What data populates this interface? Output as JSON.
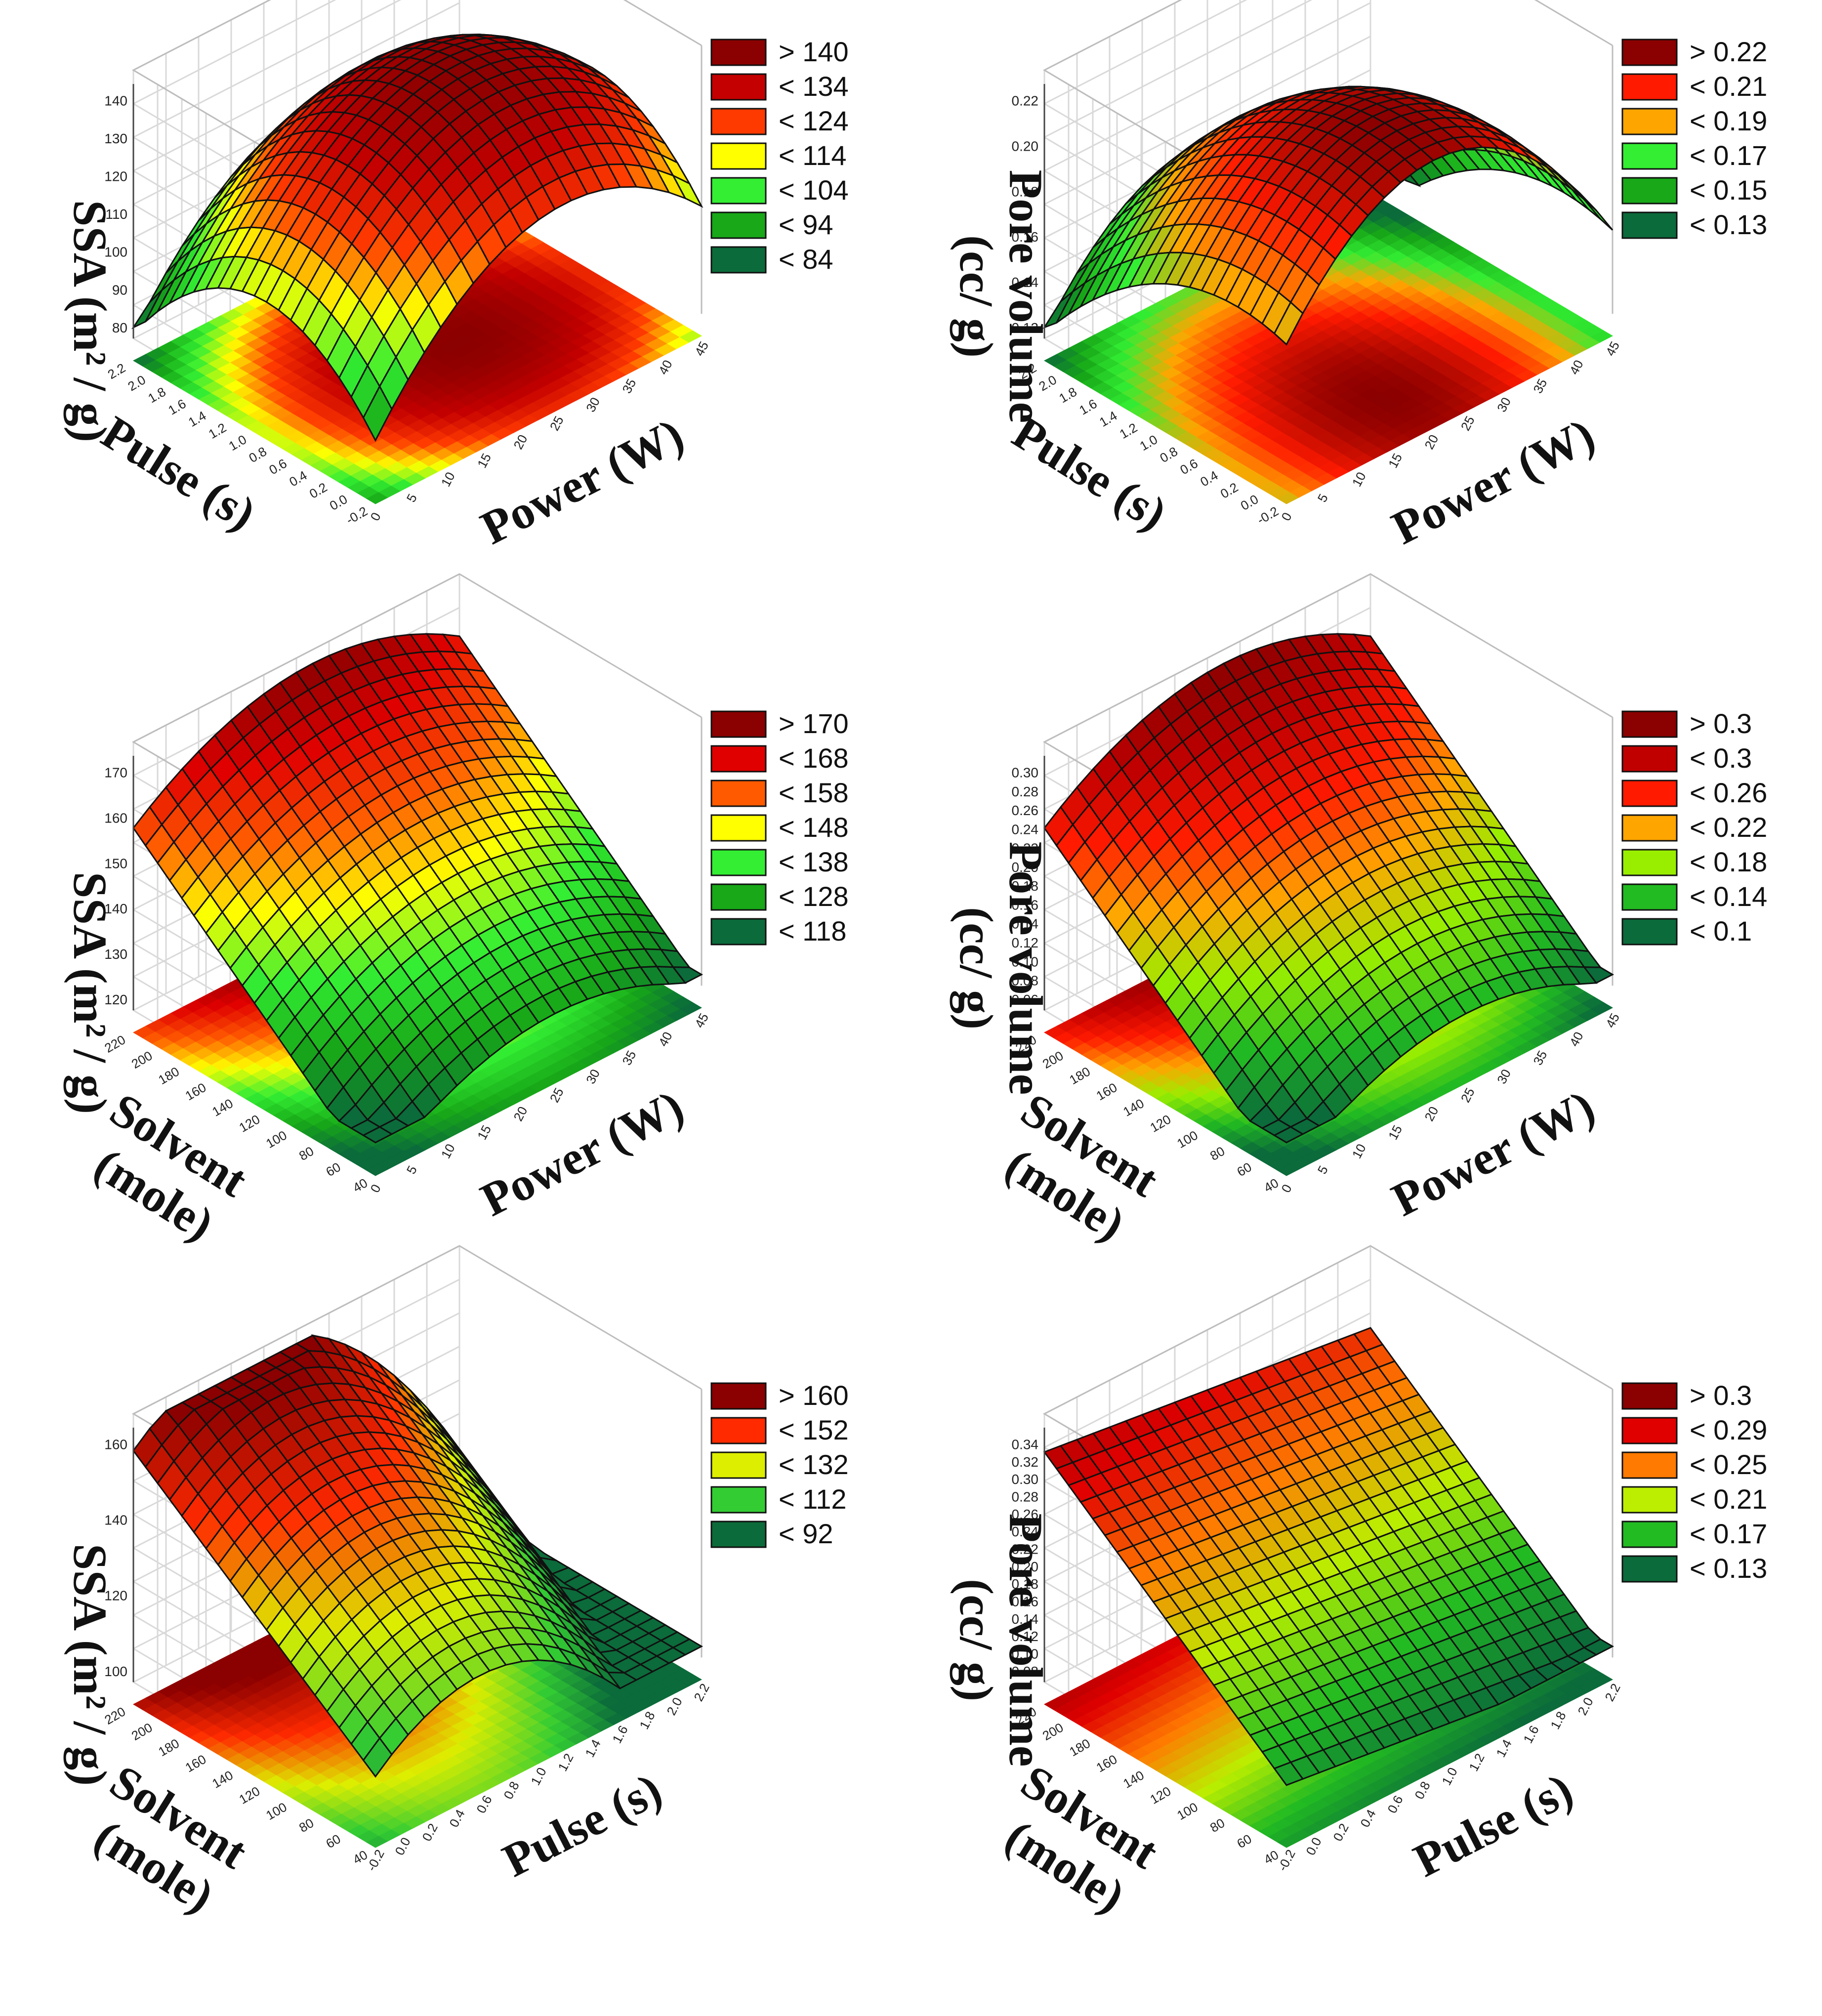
{
  "chart_data": [
    {
      "type": "surface3d",
      "title": "",
      "zlabel": "SSA (m² / g)",
      "xlabel": "Power (W)",
      "ylabel": "Pulse (s)",
      "x_ticks": [
        "0",
        "5",
        "10",
        "15",
        "20",
        "25",
        "30",
        "35",
        "40",
        "45"
      ],
      "y_ticks": [
        "-0.2",
        "0.0",
        "0.2",
        "0.4",
        "0.6",
        "0.8",
        "1.0",
        "1.2",
        "1.4",
        "1.6",
        "1.8",
        "2.0",
        "2.2"
      ],
      "z_ticks": [
        "80",
        "90",
        "100",
        "110",
        "120",
        "130",
        "140"
      ],
      "zlim": [
        78,
        144
      ],
      "surface_shape": "dome",
      "legend": [
        {
          "label": "> 140",
          "color": "#8b0000"
        },
        {
          "label": "< 134",
          "color": "#c40000"
        },
        {
          "label": "< 124",
          "color": "#ff3a00"
        },
        {
          "label": "< 114",
          "color": "#ffff00"
        },
        {
          "label": "< 104",
          "color": "#33ee33"
        },
        {
          "label": "< 94",
          "color": "#18a818"
        },
        {
          "label": "< 84",
          "color": "#0b6b3a"
        }
      ]
    },
    {
      "type": "surface3d",
      "title": "",
      "zlabel": "Pore volume",
      "zlabel2": "(cc/ g)",
      "xlabel": "Power (W)",
      "ylabel": "Pulse (s)",
      "x_ticks": [
        "0",
        "5",
        "10",
        "15",
        "20",
        "25",
        "30",
        "35",
        "40",
        "45"
      ],
      "y_ticks": [
        "-0.2",
        "0.0",
        "0.2",
        "0.4",
        "0.6",
        "0.8",
        "1.0",
        "1.2",
        "1.4",
        "1.6",
        "1.8",
        "2.0",
        "2.2"
      ],
      "z_ticks": [
        "0.12",
        "0.14",
        "0.16",
        "0.18",
        "0.20",
        "0.22"
      ],
      "zlim": [
        0.11,
        0.225
      ],
      "surface_shape": "ridge",
      "legend": [
        {
          "label": "> 0.22",
          "color": "#8b0000"
        },
        {
          "label": "< 0.21",
          "color": "#ff1a00"
        },
        {
          "label": "< 0.19",
          "color": "#ffa500"
        },
        {
          "label": "< 0.17",
          "color": "#33ee33"
        },
        {
          "label": "< 0.15",
          "color": "#18a818"
        },
        {
          "label": "< 0.13",
          "color": "#0b6b3a"
        }
      ]
    },
    {
      "type": "surface3d",
      "title": "",
      "zlabel": "SSA (m² / g)",
      "xlabel": "Power (W)",
      "ylabel": "Solvent",
      "ylabel2": "(mole)",
      "x_ticks": [
        "0",
        "5",
        "10",
        "15",
        "20",
        "25",
        "30",
        "35",
        "40",
        "45"
      ],
      "y_ticks": [
        "40",
        "60",
        "80",
        "100",
        "120",
        "140",
        "160",
        "180",
        "200",
        "220"
      ],
      "z_ticks": [
        "120",
        "130",
        "140",
        "150",
        "160",
        "170"
      ],
      "zlim": [
        112,
        176
      ],
      "surface_shape": "slope",
      "legend": [
        {
          "label": "> 170",
          "color": "#8b0000"
        },
        {
          "label": "< 168",
          "color": "#e00000"
        },
        {
          "label": "< 158",
          "color": "#ff5a00"
        },
        {
          "label": "< 148",
          "color": "#ffff00"
        },
        {
          "label": "< 138",
          "color": "#33ee33"
        },
        {
          "label": "< 128",
          "color": "#18a818"
        },
        {
          "label": "< 118",
          "color": "#0b6b3a"
        }
      ]
    },
    {
      "type": "surface3d",
      "title": "",
      "zlabel": "Pore volume",
      "zlabel2": "(cc/ g)",
      "xlabel": "Power (W)",
      "ylabel": "Solvent",
      "ylabel2": "(mole)",
      "x_ticks": [
        "0",
        "5",
        "10",
        "15",
        "20",
        "25",
        "30",
        "35",
        "40",
        "45"
      ],
      "y_ticks": [
        "40",
        "60",
        "80",
        "100",
        "120",
        "140",
        "160",
        "180",
        "200",
        "220"
      ],
      "z_ticks": [
        "0.06",
        "0.08",
        "0.10",
        "0.12",
        "0.14",
        "0.16",
        "0.18",
        "0.20",
        "0.22",
        "0.24",
        "0.26",
        "0.28",
        "0.30"
      ],
      "zlim": [
        0.05,
        0.31
      ],
      "surface_shape": "slope",
      "legend": [
        {
          "label": "> 0.3",
          "color": "#8b0000"
        },
        {
          "label": "< 0.3",
          "color": "#c00000"
        },
        {
          "label": "< 0.26",
          "color": "#ff1a00"
        },
        {
          "label": "< 0.22",
          "color": "#ffa500"
        },
        {
          "label": "< 0.18",
          "color": "#99ee00"
        },
        {
          "label": "< 0.14",
          "color": "#22bb22"
        },
        {
          "label": "< 0.1",
          "color": "#0b6b3a"
        }
      ]
    },
    {
      "type": "surface3d",
      "title": "",
      "zlabel": "SSA (m² / g)",
      "xlabel": "Pulse (s)",
      "ylabel": "Solvent",
      "ylabel2": "(mole)",
      "x_ticks": [
        "-0.2",
        "0.0",
        "0.2",
        "0.4",
        "0.6",
        "0.8",
        "1.0",
        "1.2",
        "1.4",
        "1.6",
        "1.8",
        "2.0",
        "2.2"
      ],
      "y_ticks": [
        "40",
        "60",
        "80",
        "100",
        "120",
        "140",
        "160",
        "180",
        "200",
        "220"
      ],
      "z_ticks": [
        "100",
        "120",
        "140",
        "160"
      ],
      "zlim": [
        85,
        175
      ],
      "surface_shape": "hump",
      "legend": [
        {
          "label": "> 160",
          "color": "#8b0000"
        },
        {
          "label": "< 152",
          "color": "#ff2a00"
        },
        {
          "label": "< 132",
          "color": "#ddee00"
        },
        {
          "label": "< 112",
          "color": "#33cc33"
        },
        {
          "label": "< 92",
          "color": "#0b6b3a"
        }
      ]
    },
    {
      "type": "surface3d",
      "title": "",
      "zlabel": "Pore volume",
      "zlabel2": "(cc/ g)",
      "xlabel": "Pulse (s)",
      "ylabel": "Solvent",
      "ylabel2": "(mole)",
      "x_ticks": [
        "-0.2",
        "0.0",
        "0.2",
        "0.4",
        "0.6",
        "0.8",
        "1.0",
        "1.2",
        "1.4",
        "1.6",
        "1.8",
        "2.0",
        "2.2"
      ],
      "y_ticks": [
        "40",
        "60",
        "80",
        "100",
        "120",
        "140",
        "160",
        "180",
        "200",
        "220"
      ],
      "z_ticks": [
        "0.08",
        "0.10",
        "0.12",
        "0.14",
        "0.16",
        "0.18",
        "0.20",
        "0.22",
        "0.24",
        "0.26",
        "0.28",
        "0.30",
        "0.32",
        "0.34"
      ],
      "zlim": [
        0.07,
        0.345
      ],
      "surface_shape": "plane",
      "legend": [
        {
          "label": "> 0.3",
          "color": "#8b0000"
        },
        {
          "label": "< 0.29",
          "color": "#e00000"
        },
        {
          "label": "< 0.25",
          "color": "#ff7a00"
        },
        {
          "label": "< 0.21",
          "color": "#bbee00"
        },
        {
          "label": "< 0.17",
          "color": "#22bb22"
        },
        {
          "label": "< 0.13",
          "color": "#0b6b3a"
        }
      ]
    }
  ]
}
